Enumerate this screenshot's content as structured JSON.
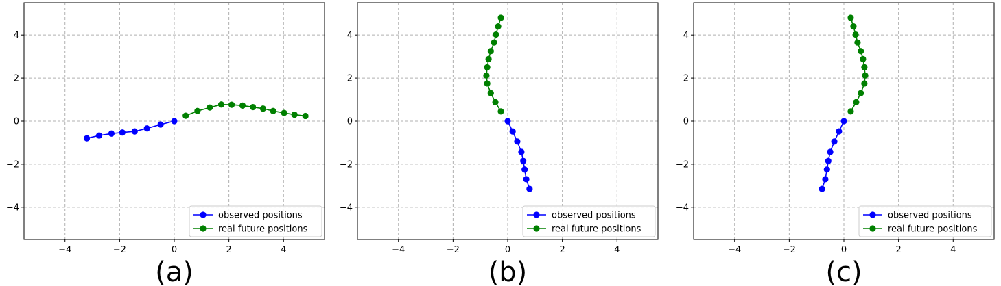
{
  "chart_data": [
    {
      "type": "line",
      "panel_label": "(a)",
      "xlim": [
        -5.5,
        5.5
      ],
      "ylim": [
        -5.5,
        5.5
      ],
      "xticks": [
        -4,
        -2,
        0,
        2,
        4
      ],
      "yticks": [
        -4,
        -2,
        0,
        2,
        4
      ],
      "xtick_labels": [
        "−4",
        "−2",
        "0",
        "2",
        "4"
      ],
      "ytick_labels": [
        "−4",
        "−2",
        "0",
        "2",
        "4"
      ],
      "grid": true,
      "legend_position": "lower-right",
      "series": [
        {
          "name": "observed positions",
          "color": "#0000ff",
          "x": [
            -3.2,
            -2.75,
            -2.3,
            -1.9,
            -1.45,
            -1.0,
            -0.5,
            0.0
          ],
          "y": [
            -0.8,
            -0.67,
            -0.58,
            -0.53,
            -0.48,
            -0.34,
            -0.16,
            0.0
          ]
        },
        {
          "name": "real future positions",
          "color": "#008000",
          "x": [
            0.42,
            0.85,
            1.3,
            1.72,
            2.1,
            2.5,
            2.88,
            3.25,
            3.62,
            4.02,
            4.4,
            4.8
          ],
          "y": [
            0.25,
            0.47,
            0.63,
            0.77,
            0.76,
            0.72,
            0.65,
            0.58,
            0.47,
            0.38,
            0.3,
            0.24
          ]
        }
      ]
    },
    {
      "type": "line",
      "panel_label": "(b)",
      "xlim": [
        -5.5,
        5.5
      ],
      "ylim": [
        -5.5,
        5.5
      ],
      "xticks": [
        -4,
        -2,
        0,
        2,
        4
      ],
      "yticks": [
        -4,
        -2,
        0,
        2,
        4
      ],
      "xtick_labels": [
        "−4",
        "−2",
        "0",
        "2",
        "4"
      ],
      "ytick_labels": [
        "−4",
        "−2",
        "0",
        "2",
        "4"
      ],
      "grid": true,
      "legend_position": "lower-right",
      "series": [
        {
          "name": "observed positions",
          "color": "#0000ff",
          "x": [
            0.0,
            0.18,
            0.35,
            0.5,
            0.57,
            0.62,
            0.68,
            0.8
          ],
          "y": [
            0.0,
            -0.48,
            -0.95,
            -1.43,
            -1.85,
            -2.25,
            -2.7,
            -3.15
          ]
        },
        {
          "name": "real future positions",
          "color": "#008000",
          "x": [
            -0.25,
            -0.45,
            -0.62,
            -0.75,
            -0.78,
            -0.75,
            -0.7,
            -0.62,
            -0.5,
            -0.43,
            -0.35,
            -0.25
          ],
          "y": [
            0.45,
            0.88,
            1.3,
            1.75,
            2.12,
            2.5,
            2.88,
            3.25,
            3.65,
            4.02,
            4.4,
            4.8
          ]
        }
      ]
    },
    {
      "type": "line",
      "panel_label": "(c)",
      "xlim": [
        -5.5,
        5.5
      ],
      "ylim": [
        -5.5,
        5.5
      ],
      "xticks": [
        -4,
        -2,
        0,
        2,
        4
      ],
      "yticks": [
        -4,
        -2,
        0,
        2,
        4
      ],
      "xtick_labels": [
        "−4",
        "−2",
        "0",
        "2",
        "4"
      ],
      "ytick_labels": [
        "−4",
        "−2",
        "0",
        "2",
        "4"
      ],
      "grid": true,
      "legend_position": "lower-right",
      "series": [
        {
          "name": "observed positions",
          "color": "#0000ff",
          "x": [
            0.0,
            -0.18,
            -0.35,
            -0.5,
            -0.57,
            -0.62,
            -0.68,
            -0.8
          ],
          "y": [
            0.0,
            -0.48,
            -0.95,
            -1.43,
            -1.85,
            -2.25,
            -2.7,
            -3.15
          ]
        },
        {
          "name": "real future positions",
          "color": "#008000",
          "x": [
            0.25,
            0.45,
            0.62,
            0.75,
            0.78,
            0.75,
            0.7,
            0.62,
            0.5,
            0.43,
            0.35,
            0.25
          ],
          "y": [
            0.45,
            0.88,
            1.3,
            1.75,
            2.12,
            2.5,
            2.88,
            3.25,
            3.65,
            4.02,
            4.4,
            4.8
          ]
        }
      ]
    }
  ]
}
